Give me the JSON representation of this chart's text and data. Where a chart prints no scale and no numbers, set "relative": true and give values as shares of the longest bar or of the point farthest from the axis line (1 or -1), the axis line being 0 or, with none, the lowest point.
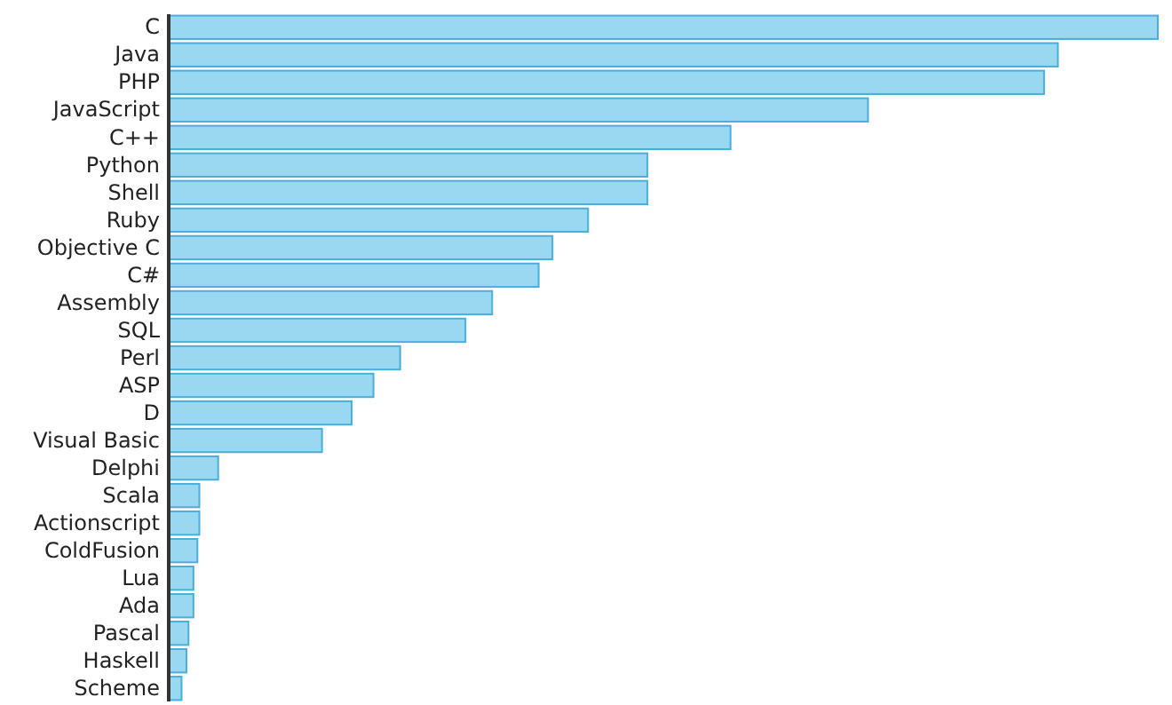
{
  "chart_data": {
    "type": "bar",
    "orientation": "horizontal",
    "relative": true,
    "categories": [
      "C",
      "Java",
      "PHP",
      "JavaScript",
      "C++",
      "Python",
      "Shell",
      "Ruby",
      "Objective C",
      "C#",
      "Assembly",
      "SQL",
      "Perl",
      "ASP",
      "D",
      "Visual Basic",
      "Delphi",
      "Scala",
      "Actionscript",
      "ColdFusion",
      "Lua",
      "Ada",
      "Pascal",
      "Haskell",
      "Scheme"
    ],
    "values": [
      1,
      0.899,
      0.885,
      0.707,
      0.568,
      0.484,
      0.484,
      0.424,
      0.388,
      0.374,
      0.327,
      0.3,
      0.234,
      0.207,
      0.185,
      0.155,
      0.05,
      0.031,
      0.031,
      0.029,
      0.025,
      0.025,
      0.02,
      0.018,
      0.013
    ],
    "color": "#8fd3f0"
  }
}
